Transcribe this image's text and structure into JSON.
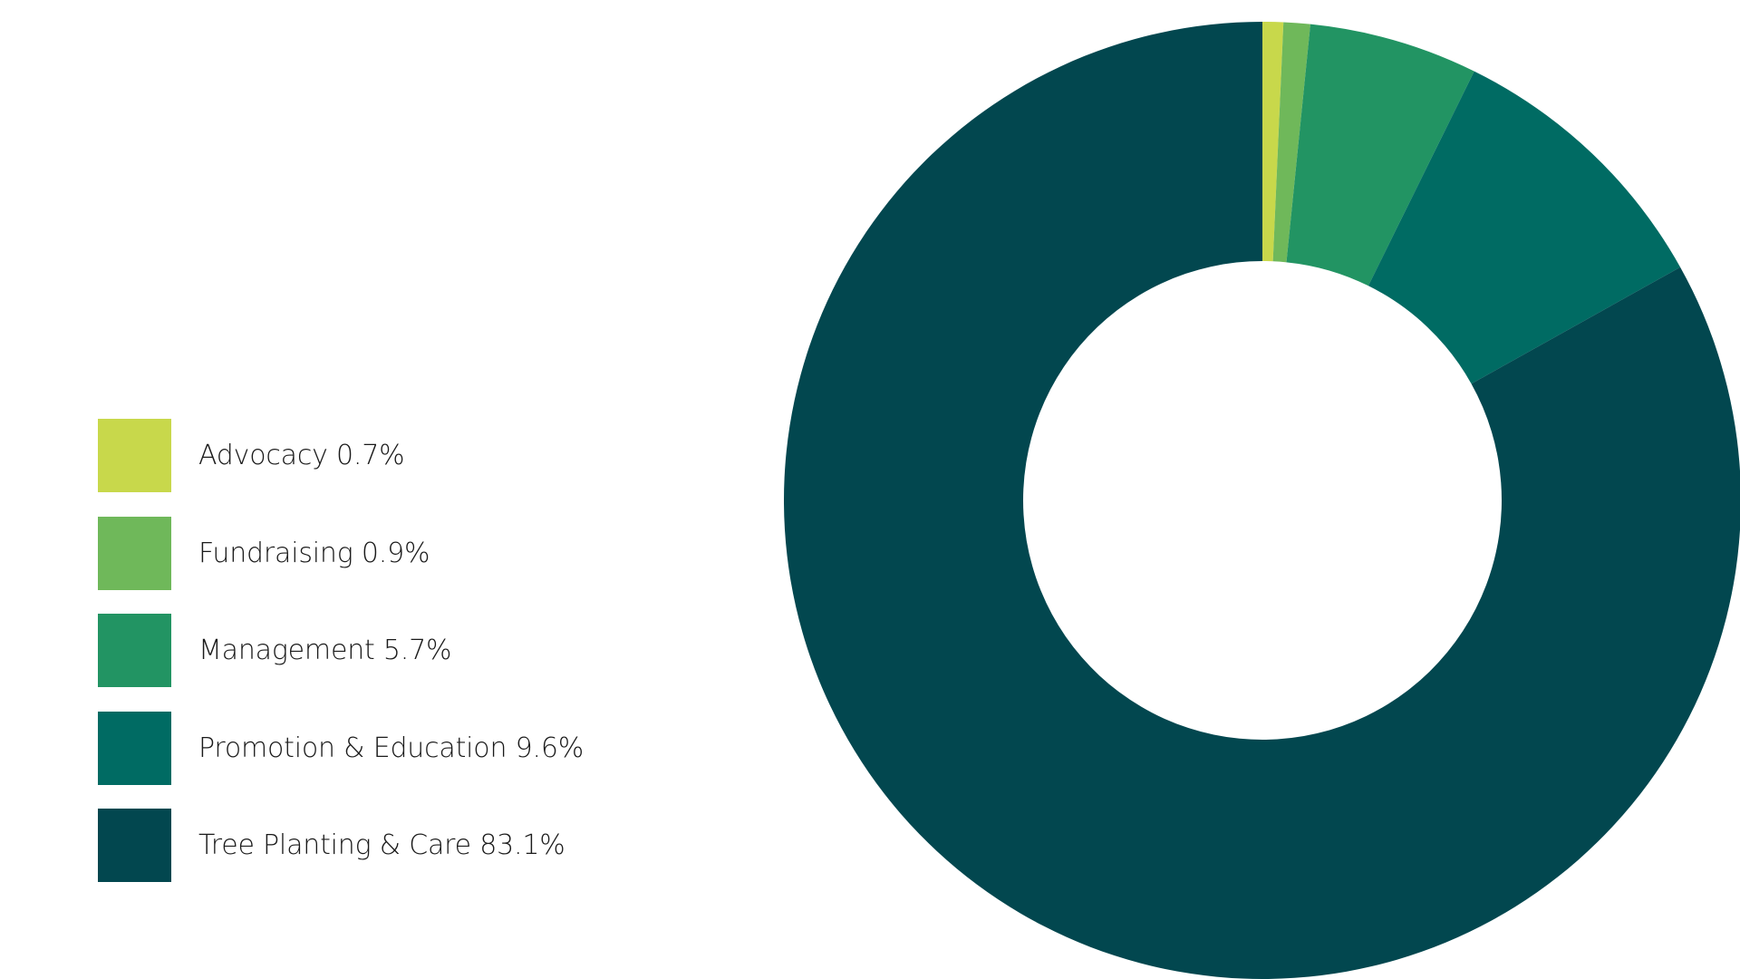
{
  "chart_data": {
    "type": "pie",
    "donut": true,
    "title": "",
    "categories": [
      "Advocacy",
      "Fundraising",
      "Management",
      "Promotion & Education",
      "Tree Planting & Care"
    ],
    "values": [
      0.7,
      0.9,
      5.7,
      9.6,
      83.1
    ],
    "unit": "%",
    "colors": [
      "#c8d84b",
      "#6fb85a",
      "#229463",
      "#006b63",
      "#02474f"
    ],
    "legend": {
      "placement": "left",
      "labels": [
        "Advocacy 0.7%",
        "Fundraising 0.9%",
        "Management 5.7%",
        "Promotion & Education 9.6%",
        "Tree Planting & Care 83.1%"
      ]
    }
  }
}
